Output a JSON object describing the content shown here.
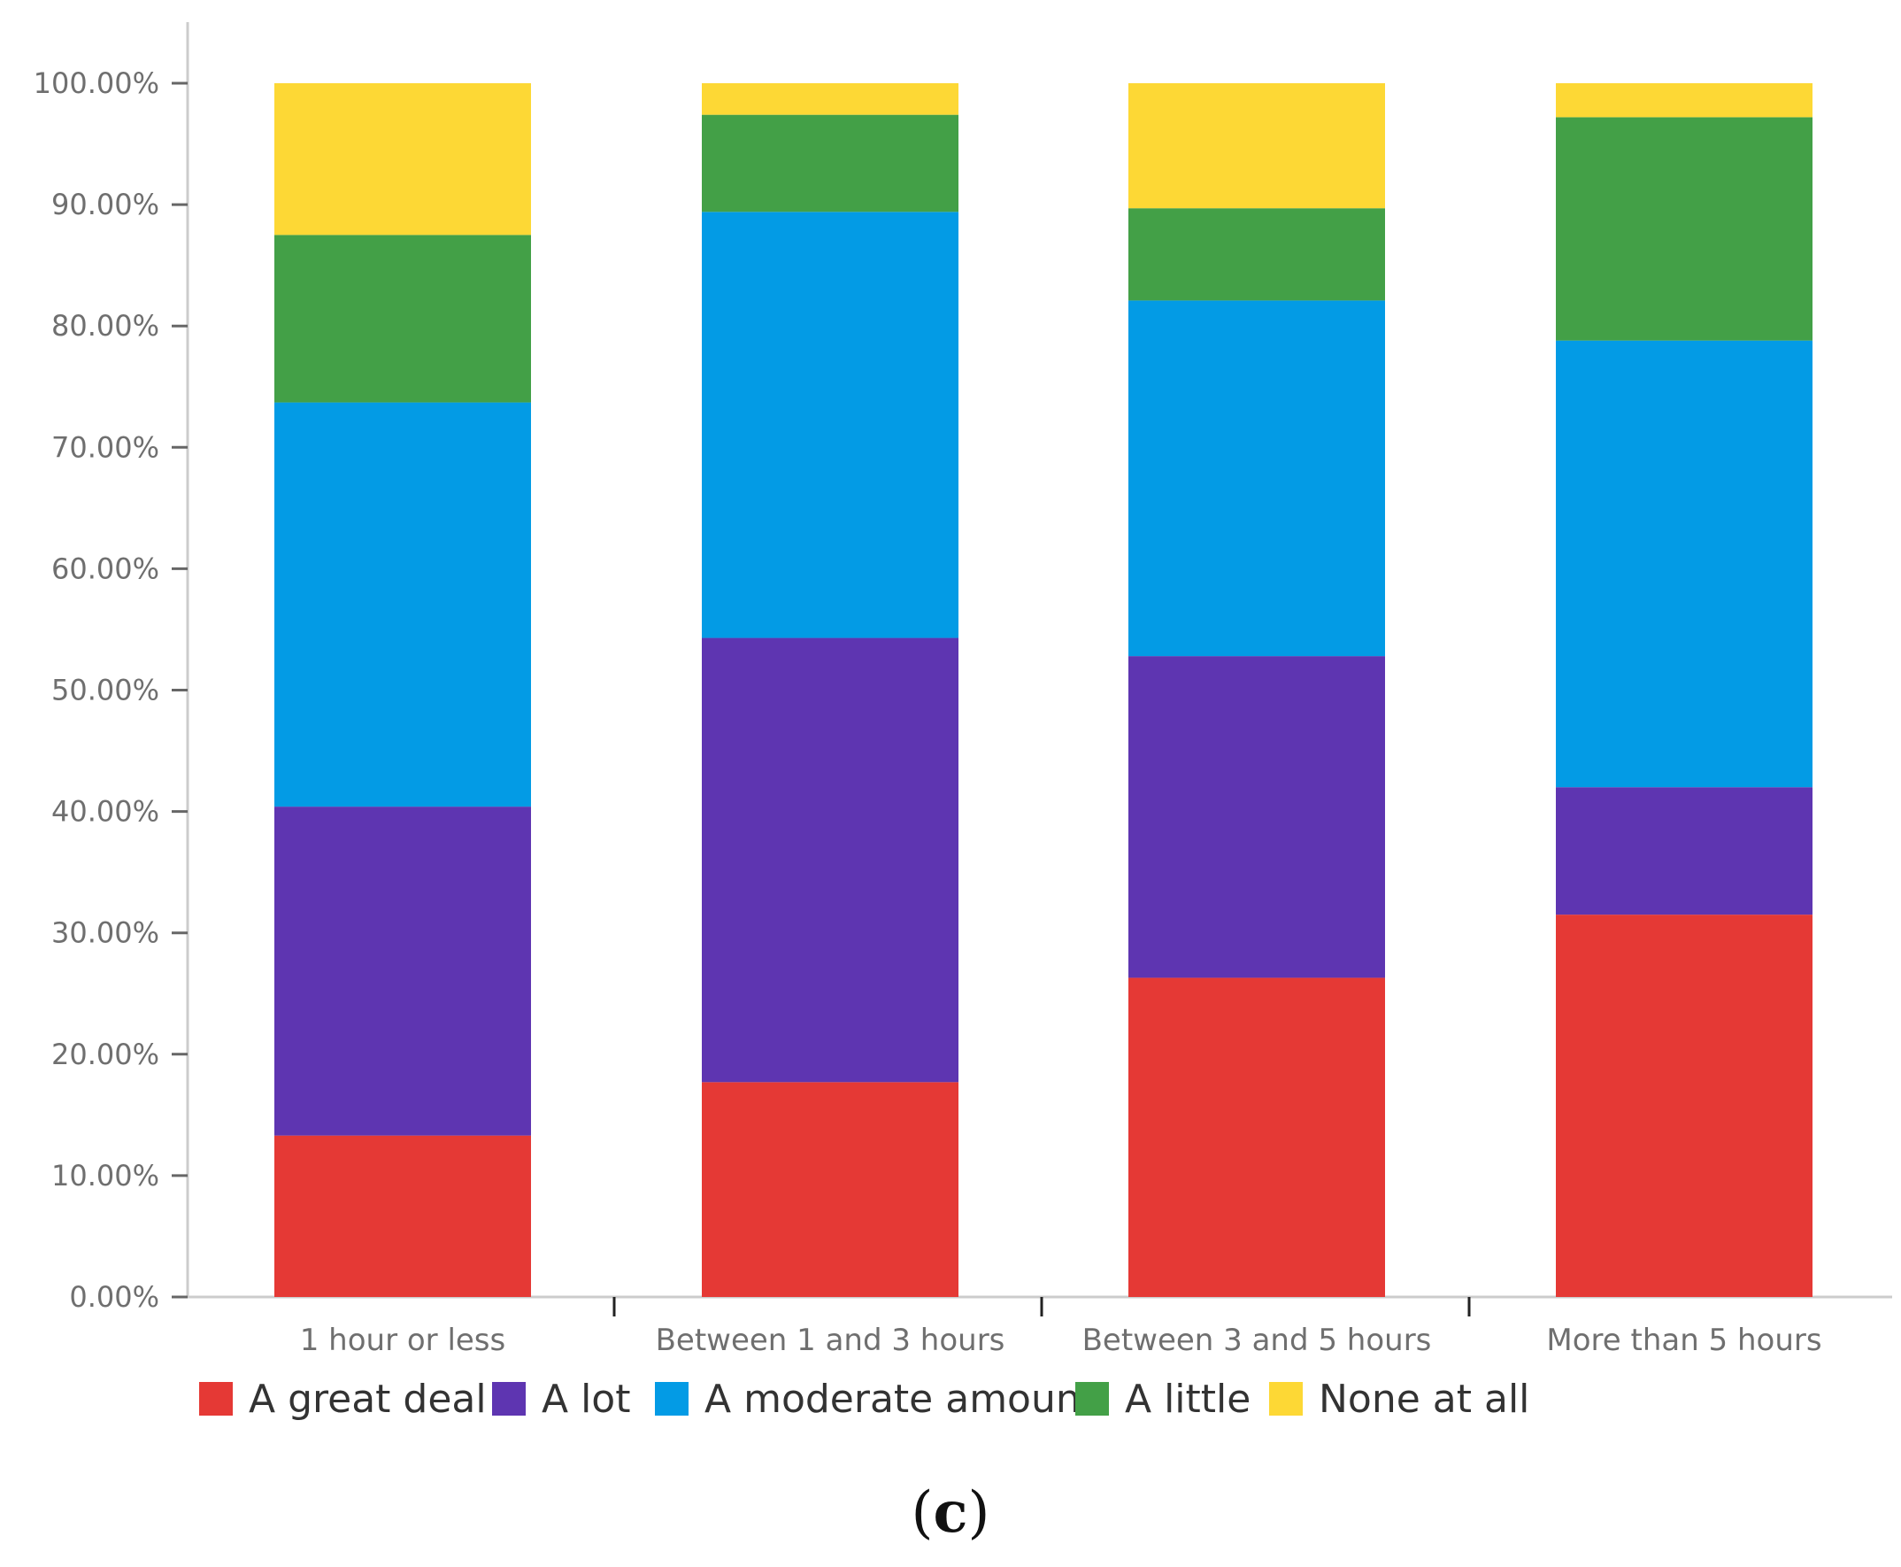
{
  "chart_data": {
    "type": "bar",
    "stacked": true,
    "title": "",
    "xlabel": "",
    "ylabel": "",
    "ylim": [
      0,
      100
    ],
    "ytick_step": 10,
    "ytick_suffix": "%",
    "ytick_decimals": 2,
    "categories": [
      "1 hour or less",
      "Between 1 and 3 hours",
      "Between 3 and 5 hours",
      "More than 5 hours"
    ],
    "series": [
      {
        "name": "A great deal",
        "color": "#e53935",
        "values": [
          13.3,
          17.7,
          26.3,
          31.5
        ]
      },
      {
        "name": "A lot",
        "color": "#5e35b1",
        "values": [
          27.1,
          36.6,
          26.5,
          10.5
        ]
      },
      {
        "name": "A moderate amount",
        "color": "#039be5",
        "values": [
          33.3,
          35.1,
          29.3,
          36.8
        ]
      },
      {
        "name": "A little",
        "color": "#43a047",
        "values": [
          13.8,
          8.0,
          7.6,
          18.4
        ]
      },
      {
        "name": "None at all",
        "color": "#fdd835",
        "values": [
          12.5,
          2.6,
          10.3,
          2.8
        ]
      }
    ],
    "legend_position": "bottom-left",
    "grid": false
  },
  "caption": {
    "open": "(",
    "letter": "c",
    "close": ")"
  }
}
